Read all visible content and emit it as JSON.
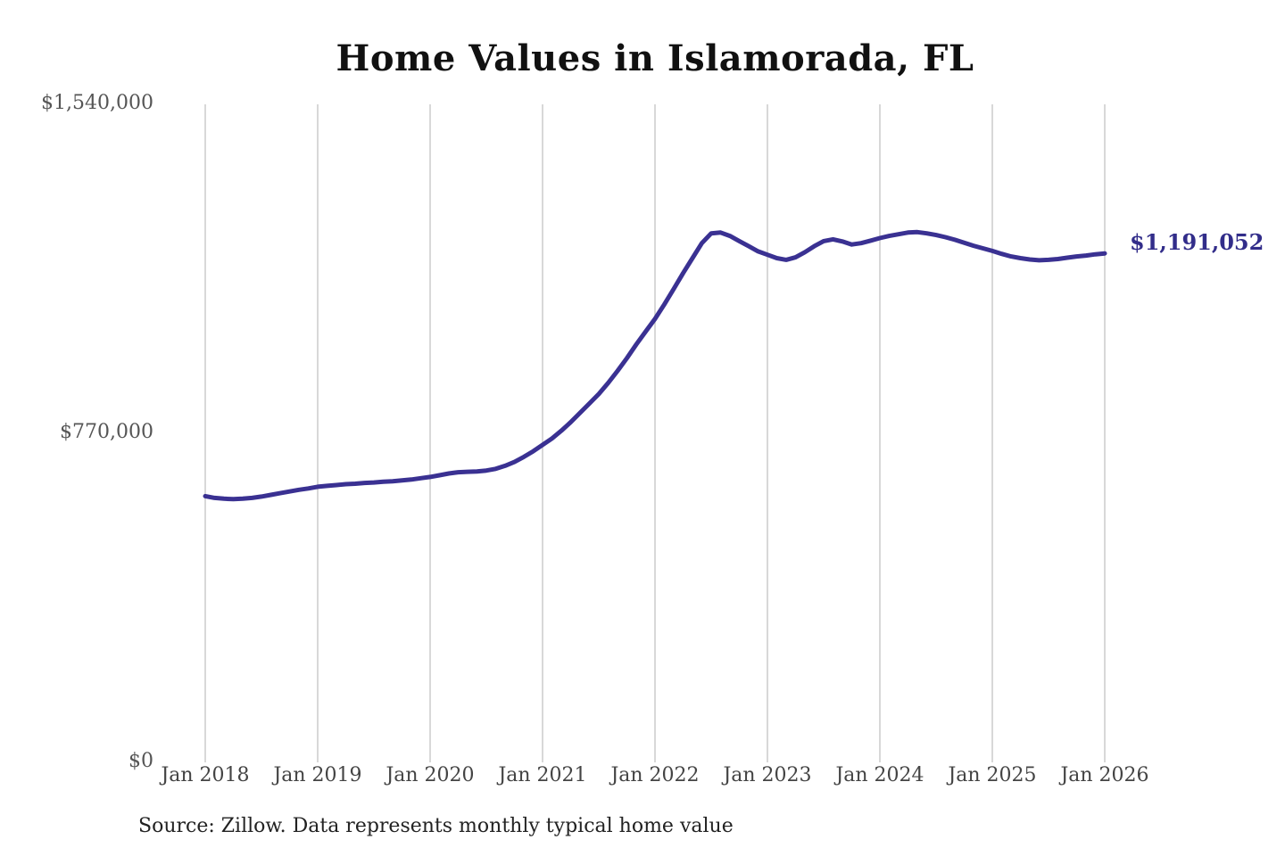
{
  "title": "Home Values in Islamorada, FL",
  "source_note": "Source: Zillow. Data represents monthly typical home value",
  "end_label_text": "$1,191,052",
  "colors": {
    "background": "#ffffff",
    "line": "#3a3192",
    "end_label": "#322d8a",
    "grid": "#cccccc",
    "title_text": "#111111",
    "y_tick_text": "#555555",
    "x_tick_text": "#444444",
    "source_text": "#222222"
  },
  "chart_data": {
    "type": "line",
    "title": "Home Values in Islamorada, FL",
    "xlabel": "",
    "ylabel": "",
    "x_start": "Jan 2018",
    "x_end": "Jan 2026",
    "interval": "monthly",
    "grid": "vertical-gridlines-only",
    "legend": "none",
    "ylim": [
      0,
      1540000
    ],
    "y_ticks": [
      {
        "label": "$0",
        "value": 0
      },
      {
        "label": "$770,000",
        "value": 770000
      },
      {
        "label": "$1,540,000",
        "value": 1540000
      }
    ],
    "x_tick_labels": [
      "Jan 2018",
      "Jan 2019",
      "Jan 2020",
      "Jan 2021",
      "Jan 2022",
      "Jan 2023",
      "Jan 2024",
      "Jan 2025",
      "Jan 2026"
    ],
    "series": [
      {
        "name": "Typical home value",
        "values": [
          623000,
          619000,
          617000,
          616000,
          617000,
          619000,
          622000,
          626000,
          630000,
          634000,
          638000,
          641000,
          645000,
          647000,
          649000,
          651000,
          652000,
          654000,
          655000,
          657000,
          658000,
          660000,
          662000,
          665000,
          668000,
          672000,
          676000,
          679000,
          680000,
          681000,
          683000,
          687000,
          694000,
          703000,
          715000,
          728000,
          743000,
          758000,
          776000,
          796000,
          818000,
          840000,
          862000,
          888000,
          916000,
          946000,
          978000,
          1008000,
          1038000,
          1072000,
          1108000,
          1145000,
          1180000,
          1215000,
          1238000,
          1240000,
          1232000,
          1220000,
          1208000,
          1196000,
          1188000,
          1180000,
          1176000,
          1182000,
          1194000,
          1208000,
          1220000,
          1224000,
          1219000,
          1212000,
          1215000,
          1221000,
          1227000,
          1232000,
          1236000,
          1240000,
          1241000,
          1238000,
          1234000,
          1229000,
          1223000,
          1216000,
          1209000,
          1203000,
          1197000,
          1190000,
          1184000,
          1180000,
          1177000,
          1175000,
          1176000,
          1178000,
          1181000,
          1184000,
          1186000,
          1189000,
          1191052
        ]
      }
    ],
    "end_value": 1191052,
    "end_value_label": "$1,191,052"
  }
}
